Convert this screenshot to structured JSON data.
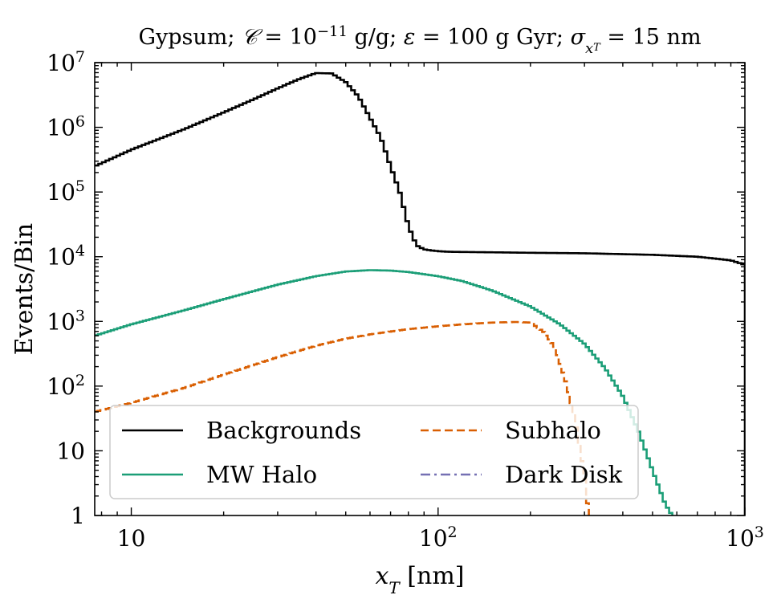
{
  "chart_data": {
    "type": "line",
    "title": "Gypsum; 𝒞 = 10⁻¹¹ g/g; ε = 100 g Gyr; σ_{x_T} = 15 nm",
    "xlabel": "x_T [nm]",
    "ylabel": "Events/Bin",
    "xscale": "log",
    "yscale": "log",
    "xlim": [
      7.6,
      1000
    ],
    "ylim": [
      1,
      10000000
    ],
    "x_ticks": [
      {
        "value": 10,
        "label": "10"
      },
      {
        "value": 100,
        "label": "10",
        "sup": "2"
      },
      {
        "value": 1000,
        "label": "10",
        "sup": "3"
      }
    ],
    "y_ticks": [
      {
        "value": 1,
        "label": "1"
      },
      {
        "value": 10,
        "label": "10"
      },
      {
        "value": 100,
        "label": "10",
        "sup": "2"
      },
      {
        "value": 1000,
        "label": "10",
        "sup": "3"
      },
      {
        "value": 10000,
        "label": "10",
        "sup": "4"
      },
      {
        "value": 100000,
        "label": "10",
        "sup": "5"
      },
      {
        "value": 1000000,
        "label": "10",
        "sup": "6"
      },
      {
        "value": 10000000,
        "label": "10",
        "sup": "7"
      }
    ],
    "grid": false,
    "legend": "lower-left, 2 columns",
    "series": [
      {
        "name": "Backgrounds",
        "color": "#000000",
        "dash": "solid",
        "x": [
          7.6,
          10,
          15,
          20,
          25,
          30,
          35,
          40,
          45,
          50,
          55,
          60,
          65,
          70,
          75,
          80,
          85,
          90,
          95,
          100,
          105,
          110,
          150,
          200,
          300,
          500,
          700,
          900,
          1000
        ],
        "y": [
          250000,
          450000,
          950000,
          1700000,
          2700000,
          4000000,
          5500000,
          6900000,
          6800000,
          5000000,
          3000000,
          1400000,
          700000,
          250000,
          100000,
          30000,
          15000,
          13000,
          12500,
          12200,
          12000,
          11900,
          11700,
          11500,
          11300,
          10700,
          10000,
          8800,
          7500
        ]
      },
      {
        "name": "MW Halo",
        "color": "#1b9e77",
        "dash": "solid",
        "x": [
          7.6,
          10,
          15,
          20,
          30,
          40,
          50,
          60,
          70,
          80,
          100,
          120,
          150,
          200,
          250,
          300,
          350,
          400,
          450,
          500,
          550,
          580
        ],
        "y": [
          600,
          900,
          1500,
          2200,
          3700,
          5000,
          5900,
          6200,
          6100,
          5800,
          5000,
          4200,
          3000,
          1700,
          900,
          450,
          190,
          70,
          20,
          5,
          1.5,
          1
        ]
      },
      {
        "name": "Subhalo",
        "color": "#d95f02",
        "dash": "dashed",
        "x": [
          7.6,
          10,
          15,
          20,
          30,
          40,
          50,
          60,
          80,
          100,
          120,
          150,
          180,
          200,
          220,
          240,
          260,
          280,
          300,
          310
        ],
        "y": [
          40,
          55,
          95,
          150,
          280,
          420,
          540,
          630,
          760,
          840,
          900,
          960,
          980,
          960,
          700,
          400,
          120,
          30,
          4,
          1
        ]
      },
      {
        "name": "Dark Disk",
        "color": "#7570b3",
        "dash": "dashdot",
        "x": [],
        "y": []
      }
    ]
  }
}
